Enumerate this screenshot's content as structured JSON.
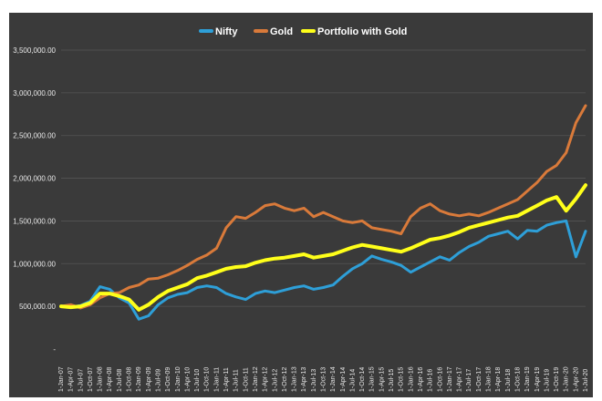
{
  "chart_data": {
    "type": "line",
    "title": "",
    "xlabel": "",
    "ylabel": "",
    "ylim": [
      0,
      3500000
    ],
    "y_ticks": [
      0,
      500000,
      1000000,
      1500000,
      2000000,
      2500000,
      3000000,
      3500000
    ],
    "y_tick_labels": [
      "-",
      "500,000.00",
      "1,000,000.00",
      "1,500,000.00",
      "2,000,000.00",
      "2,500,000.00",
      "3,000,000.00",
      "3,500,000.00"
    ],
    "x_tick_labels": [
      "1-Jan-07",
      "1-Apr-07",
      "1-Jul-07",
      "1-Oct-07",
      "1-Jan-08",
      "1-Apr-08",
      "1-Jul-08",
      "1-Oct-08",
      "1-Jan-09",
      "1-Apr-09",
      "1-Jul-09",
      "1-Oct-09",
      "1-Jan-10",
      "1-Apr-10",
      "1-Jul-10",
      "1-Oct-10",
      "1-Jan-11",
      "1-Apr-11",
      "1-Jul-11",
      "1-Oct-11",
      "1-Jan-12",
      "1-Apr-12",
      "1-Jul-12",
      "1-Oct-12",
      "1-Jan-13",
      "1-Apr-13",
      "1-Jul-13",
      "1-Oct-13",
      "1-Jan-14",
      "1-Apr-14",
      "1-Jul-14",
      "1-Oct-14",
      "1-Jan-15",
      "1-Apr-15",
      "1-Jul-15",
      "1-Oct-15",
      "1-Jan-16",
      "1-Apr-16",
      "1-Jul-16",
      "1-Oct-16",
      "1-Jan-17",
      "1-Apr-17",
      "1-Jul-17",
      "1-Oct-17",
      "1-Jan-18",
      "1-Apr-18",
      "1-Jul-18",
      "1-Oct-18",
      "1-Jan-19",
      "1-Apr-19",
      "1-Jul-19",
      "1-Oct-19",
      "1-Jan-20",
      "1-Apr-20",
      "1-Jul-20"
    ],
    "grid": true,
    "legend_position": "top-center",
    "background": "#3a3a3a",
    "series": [
      {
        "name": "Nifty",
        "color": "#2e9fd8",
        "values": [
          500000,
          490000,
          510000,
          560000,
          730000,
          700000,
          600000,
          540000,
          350000,
          390000,
          520000,
          600000,
          640000,
          660000,
          720000,
          740000,
          720000,
          650000,
          610000,
          580000,
          650000,
          680000,
          660000,
          690000,
          720000,
          740000,
          700000,
          720000,
          750000,
          850000,
          940000,
          1000000,
          1090000,
          1050000,
          1020000,
          980000,
          900000,
          960000,
          1020000,
          1080000,
          1040000,
          1130000,
          1200000,
          1250000,
          1320000,
          1350000,
          1380000,
          1290000,
          1390000,
          1380000,
          1450000,
          1480000,
          1500000,
          1080000,
          1380000
        ]
      },
      {
        "name": "Gold",
        "color": "#d97a3a",
        "values": [
          500000,
          520000,
          480000,
          520000,
          600000,
          650000,
          660000,
          720000,
          750000,
          820000,
          830000,
          870000,
          920000,
          980000,
          1050000,
          1100000,
          1180000,
          1420000,
          1550000,
          1530000,
          1600000,
          1680000,
          1700000,
          1650000,
          1620000,
          1650000,
          1550000,
          1600000,
          1550000,
          1500000,
          1480000,
          1500000,
          1420000,
          1400000,
          1380000,
          1350000,
          1550000,
          1650000,
          1700000,
          1620000,
          1580000,
          1560000,
          1580000,
          1560000,
          1600000,
          1650000,
          1700000,
          1750000,
          1850000,
          1950000,
          2080000,
          2150000,
          2300000,
          2650000,
          2850000
        ]
      },
      {
        "name": "Portfolio with Gold",
        "color": "#ffff1a",
        "values": [
          500000,
          490000,
          500000,
          540000,
          650000,
          650000,
          620000,
          580000,
          460000,
          520000,
          610000,
          680000,
          720000,
          760000,
          830000,
          860000,
          900000,
          940000,
          960000,
          970000,
          1010000,
          1040000,
          1060000,
          1070000,
          1090000,
          1110000,
          1070000,
          1090000,
          1110000,
          1150000,
          1190000,
          1220000,
          1200000,
          1180000,
          1160000,
          1140000,
          1180000,
          1230000,
          1280000,
          1300000,
          1330000,
          1370000,
          1420000,
          1450000,
          1480000,
          1510000,
          1540000,
          1560000,
          1620000,
          1680000,
          1740000,
          1780000,
          1620000,
          1760000,
          1920000
        ]
      }
    ]
  }
}
